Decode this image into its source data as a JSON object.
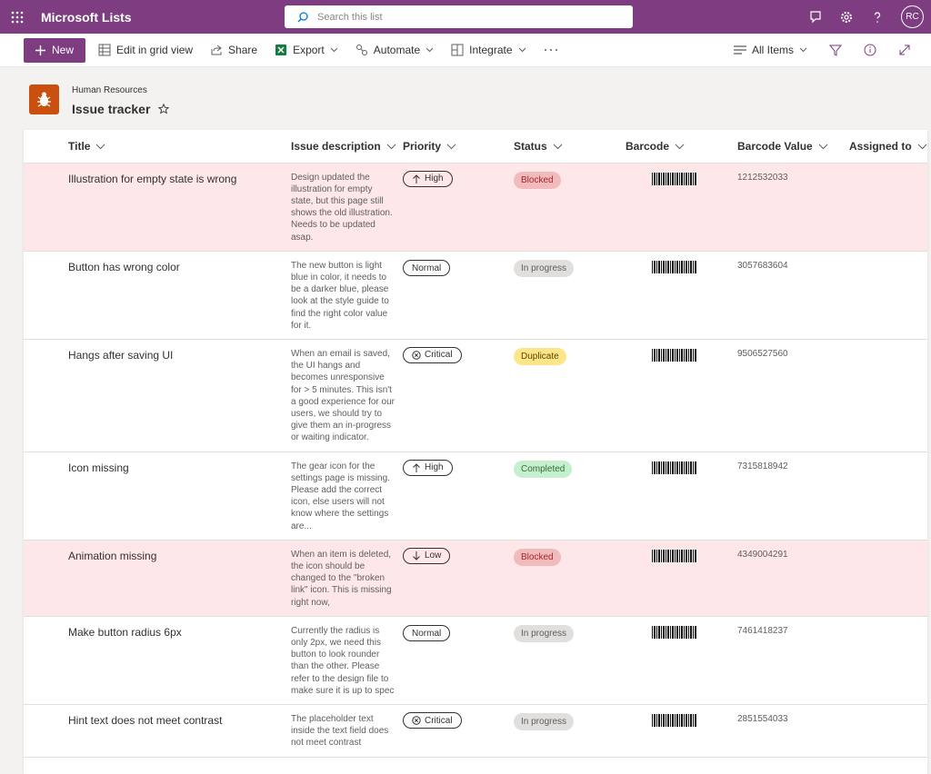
{
  "header": {
    "app_name": "Microsoft Lists",
    "search_placeholder": "Search this list",
    "avatar": "RC"
  },
  "toolbar": {
    "new": "New",
    "items": [
      "Edit in grid view",
      "Share",
      "Export",
      "Automate",
      "Integrate"
    ],
    "view": "All Items"
  },
  "list": {
    "site": "Human Resources",
    "title": "Issue tracker"
  },
  "table": {
    "columns": [
      "Title",
      "Issue description",
      "Priority",
      "Status",
      "Barcode",
      "Barcode Value",
      "Assigned to"
    ],
    "rows": [
      {
        "title": "Illustration for empty state is wrong",
        "description": "Design updated the illustration for empty state, but this page still shows the old illustration. Needs to be updated asap.",
        "priority": "High",
        "status": "Blocked",
        "barcode_value": "1212532033"
      },
      {
        "title": "Button has wrong color",
        "description": "The new button is light blue in color, it needs to be a darker blue, please look at the style guide to find the right color value for it.",
        "priority": "Normal",
        "status": "In progress",
        "barcode_value": "3057683604"
      },
      {
        "title": "Hangs after saving UI",
        "description": "When an email is saved, the UI hangs and becomes unresponsive for > 5 minutes. This isn't a good experience for our users, we should try to give them an in-progress or waiting indicator.",
        "priority": "Critical",
        "status": "Duplicate",
        "barcode_value": "9506527560"
      },
      {
        "title": "Icon missing",
        "description": "The gear icon for the settings page is missing. Please add the correct icon, else users will not know where the settings are...",
        "priority": "High",
        "status": "Completed",
        "barcode_value": "7315818942"
      },
      {
        "title": "Animation missing",
        "description": "When an item is deleted, the icon should be changed to the \"broken link\" icon. This is missing right now,",
        "priority": "Low",
        "status": "Blocked",
        "barcode_value": "4349004291"
      },
      {
        "title": "Make button radius 6px",
        "description": "Currently the radius is only 2px, we need this button to look rounder than the other. Please refer to the design file to make sure it is up to spec",
        "priority": "Normal",
        "status": "In progress",
        "barcode_value": "7461418237"
      },
      {
        "title": "Hint text does not meet contrast",
        "description": "The placeholder text inside the text field does not meet contrast",
        "priority": "Critical",
        "status": "In progress",
        "barcode_value": "2851554033"
      }
    ]
  }
}
